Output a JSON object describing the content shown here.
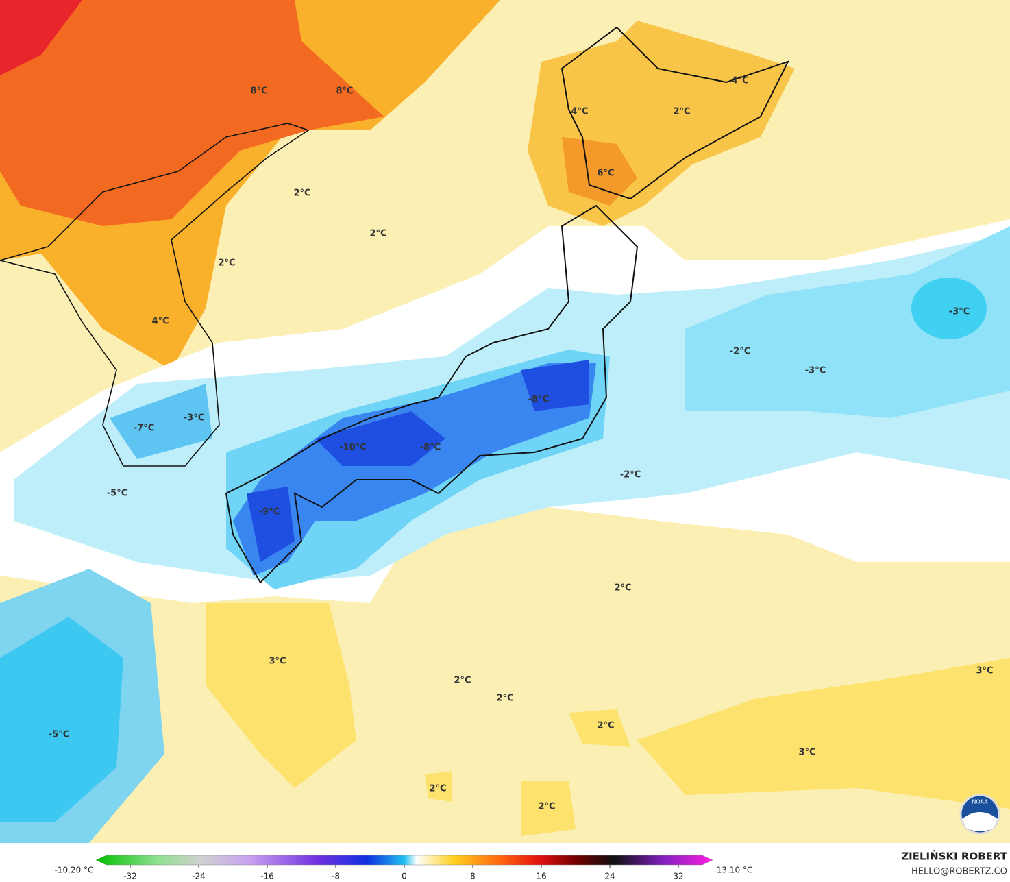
{
  "map_labels": [
    "8°C",
    "8°C",
    "4°C",
    "4°C",
    "2°C",
    "6°C",
    "2°C",
    "2°C",
    "2°C",
    "4°C",
    "-3°C",
    "-2°C",
    "-3°C",
    "-8°C",
    "-3°C",
    "-7°C",
    "-10°C",
    "-8°C",
    "-2°C",
    "-5°C",
    "-9°C",
    "2°C",
    "3°C",
    "2°C",
    "2°C",
    "3°C",
    "2°C",
    "3°C",
    "2°C",
    "2°C",
    "-5°C"
  ],
  "legend": {
    "min_label": "-10.20 °C",
    "max_label": "13.10 °C",
    "ticks": [
      -32,
      -24,
      -16,
      -8,
      0,
      8,
      16,
      24,
      32
    ],
    "range": [
      -36,
      36
    ]
  },
  "credit": {
    "name": "ZIELIŃSKI ROBERT",
    "email": "HELLO@ROBERTZ.CO"
  },
  "logo": "NOAA"
}
